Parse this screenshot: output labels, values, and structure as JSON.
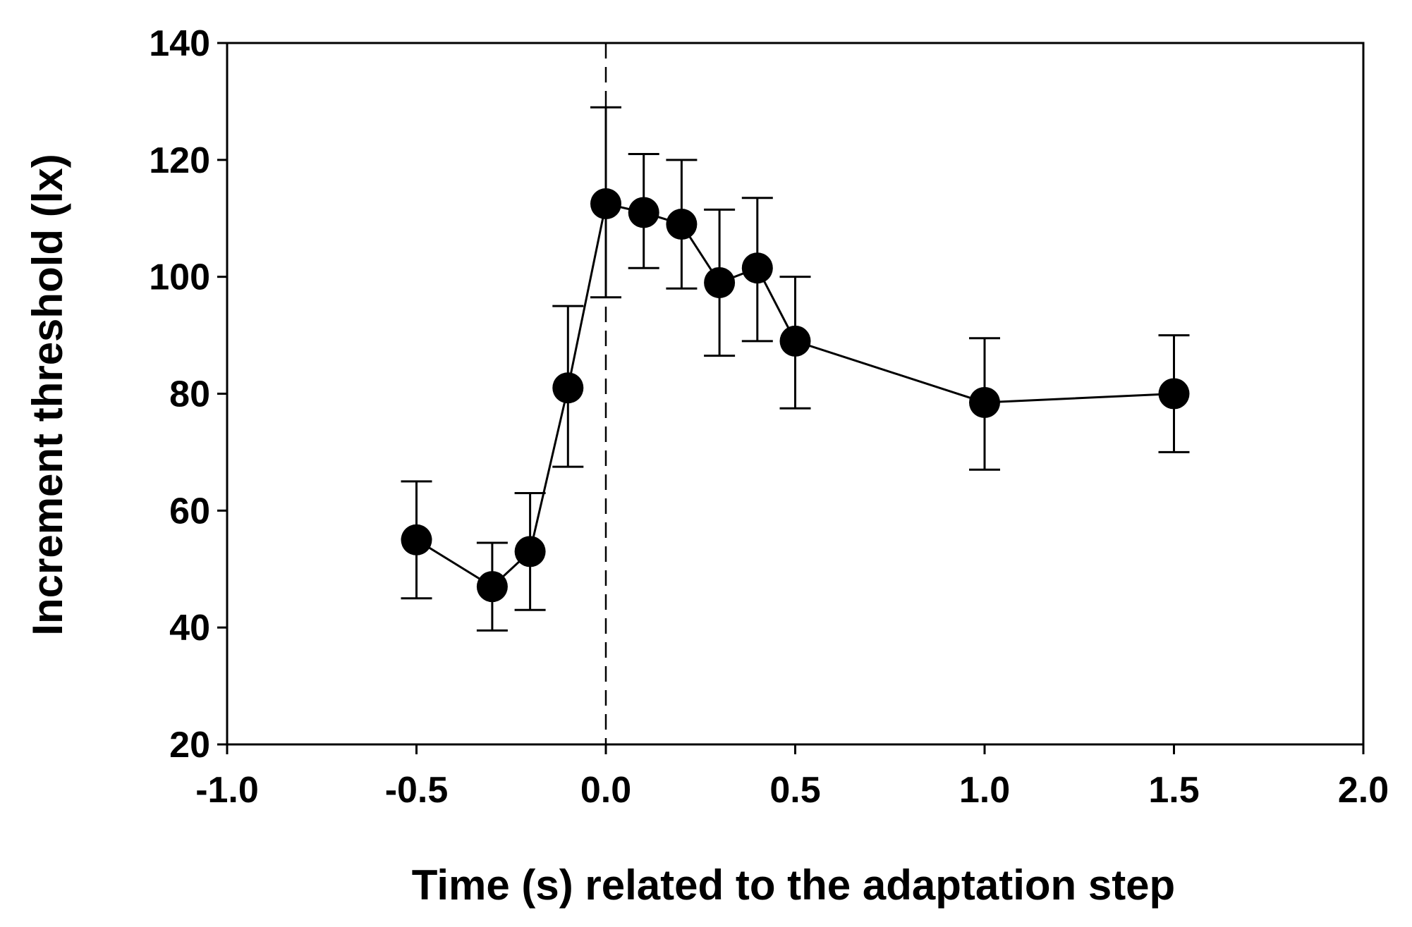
{
  "chart_data": {
    "type": "line",
    "title": "",
    "xlabel": "Time (s) related to the adaptation step",
    "ylabel": "Increment threshold (lx)",
    "xlim": [
      -1.0,
      2.0
    ],
    "ylim": [
      20,
      140
    ],
    "xticks": [
      -1.0,
      -0.5,
      0.0,
      0.5,
      1.0,
      1.5,
      2.0
    ],
    "xtick_labels": [
      "-1.0",
      "-0.5",
      "0.0",
      "0.5",
      "1.0",
      "1.5",
      "2.0"
    ],
    "yticks": [
      20,
      40,
      60,
      80,
      100,
      120,
      140
    ],
    "ytick_labels": [
      "20",
      "40",
      "60",
      "80",
      "100",
      "120",
      "140"
    ],
    "grid": false,
    "reference_line": {
      "x": 0.0,
      "style": "dashed"
    },
    "series": [
      {
        "name": "Increment threshold",
        "x": [
          -0.5,
          -0.3,
          -0.2,
          -0.1,
          0.0,
          0.1,
          0.2,
          0.3,
          0.4,
          0.5,
          1.0,
          1.5
        ],
        "y": [
          55.0,
          47.0,
          53.0,
          81.0,
          112.5,
          111.0,
          109.0,
          99.0,
          101.5,
          89.0,
          78.5,
          80.0
        ],
        "err_upper": [
          65.0,
          54.5,
          63.0,
          95.0,
          129.0,
          121.0,
          120.0,
          111.5,
          113.5,
          100.0,
          89.5,
          90.0
        ],
        "err_lower": [
          45.0,
          39.5,
          43.0,
          67.5,
          96.5,
          101.5,
          98.0,
          86.5,
          89.0,
          77.5,
          67.0,
          70.0
        ]
      }
    ]
  }
}
